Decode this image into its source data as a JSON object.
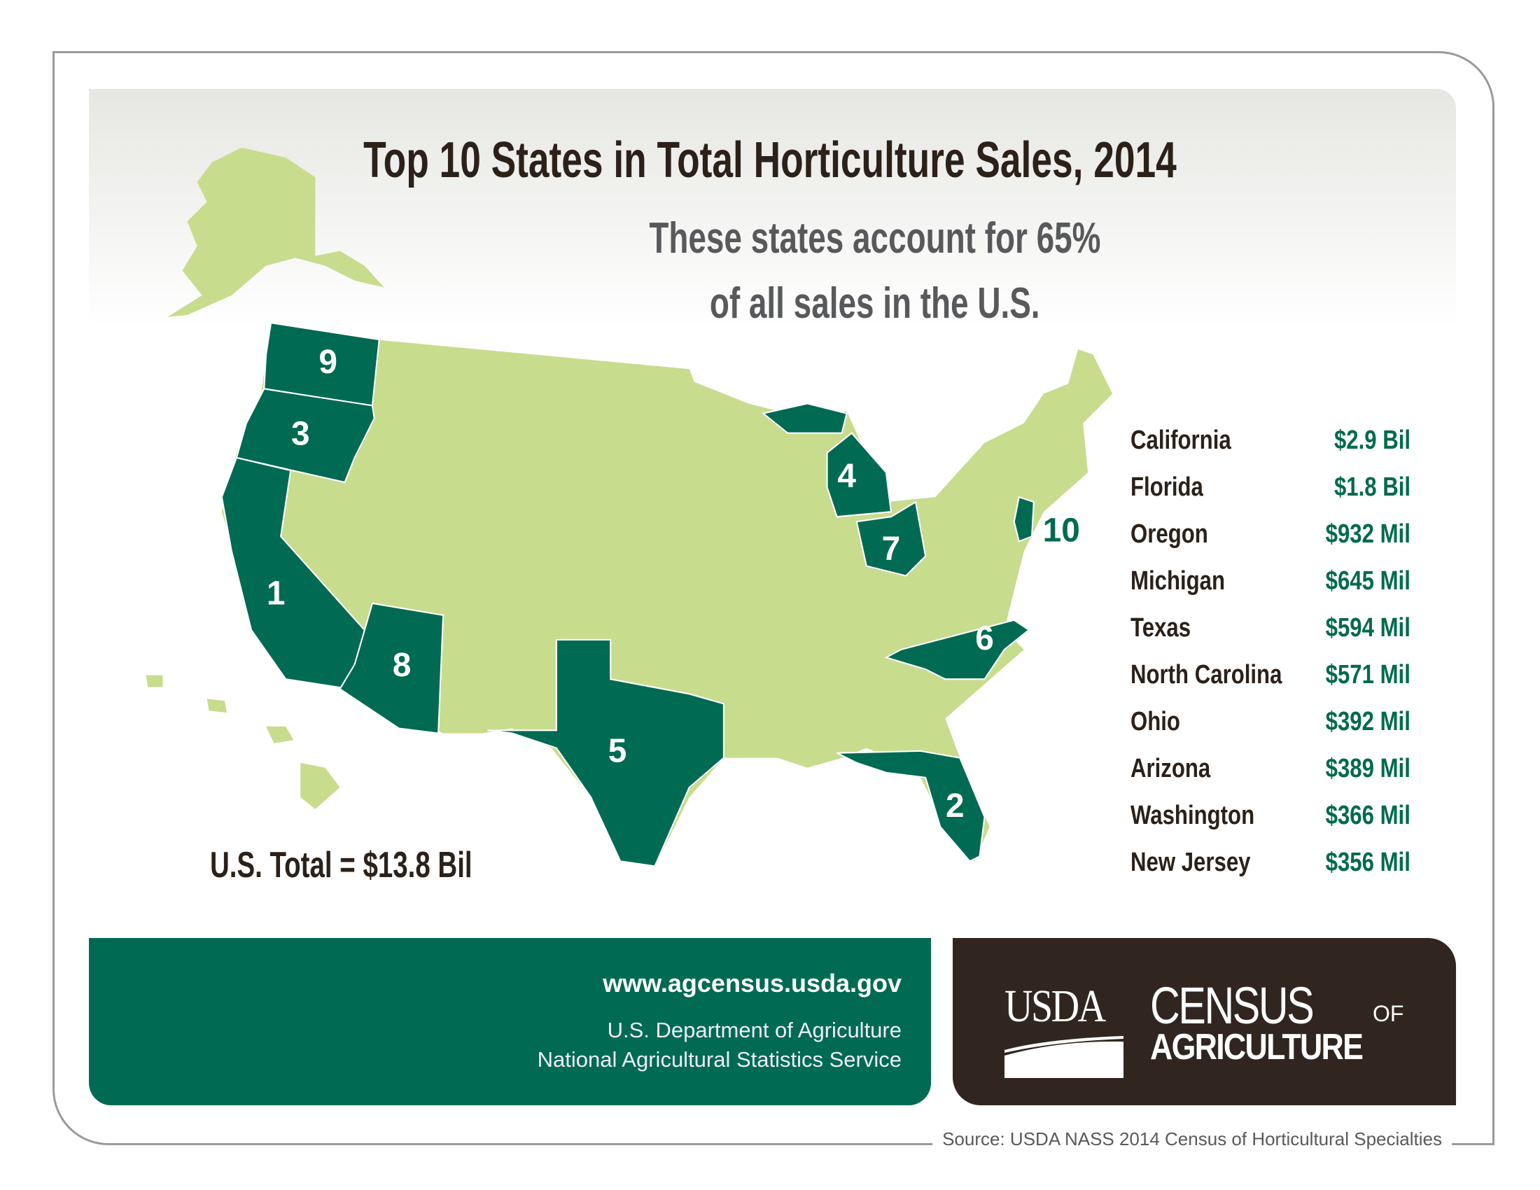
{
  "header": {
    "title": "Top 10 States in Total Horticulture Sales, 2014",
    "subtitle_line1": "These states account for 65%",
    "subtitle_line2": "of all sales in the U.S."
  },
  "colors": {
    "top10": "#006a52",
    "other": "#c8dc8e",
    "brand_brown": "#30261f",
    "value_text": "#006a4e"
  },
  "map": {
    "ranks": [
      "1",
      "2",
      "3",
      "4",
      "5",
      "6",
      "7",
      "8",
      "9",
      "10"
    ]
  },
  "total": "U.S. Total = $13.8 Bil",
  "rankings": [
    {
      "state": "California",
      "value": "$2.9 Bil"
    },
    {
      "state": "Florida",
      "value": "$1.8 Bil"
    },
    {
      "state": "Oregon",
      "value": "$932 Mil"
    },
    {
      "state": "Michigan",
      "value": "$645 Mil"
    },
    {
      "state": "Texas",
      "value": "$594 Mil"
    },
    {
      "state": "North Carolina",
      "value": "$571 Mil"
    },
    {
      "state": "Ohio",
      "value": "$392 Mil"
    },
    {
      "state": "Arizona",
      "value": "$389 Mil"
    },
    {
      "state": "Washington",
      "value": "$366 Mil"
    },
    {
      "state": "New Jersey",
      "value": "$356 Mil"
    }
  ],
  "footer": {
    "url": "www.agcensus.usda.gov",
    "dept1": "U.S. Department of Agriculture",
    "dept2": "National Agricultural Statistics Service",
    "logo": {
      "usda": "USDA",
      "census": "CENSUS",
      "of": "OF",
      "agriculture": "AGRICULTURE"
    },
    "source": "Source: USDA NASS 2014 Census of Horticultural Specialties"
  }
}
